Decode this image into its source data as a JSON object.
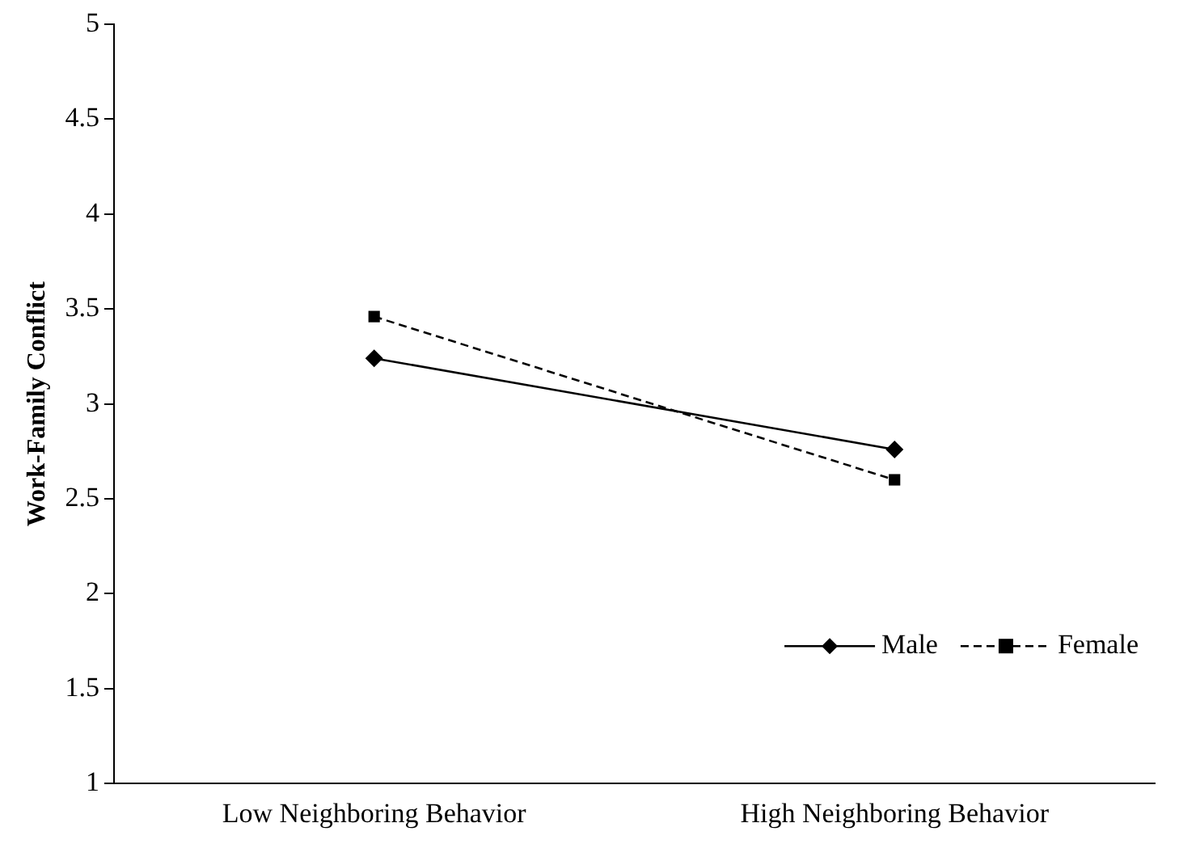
{
  "chart_data": {
    "type": "line",
    "ylabel": "Work-Family Conflict",
    "categories": [
      "Low Neighboring Behavior",
      "High Neighboring Behavior"
    ],
    "series": [
      {
        "name": "Male",
        "color": "#000000",
        "values": [
          3.24,
          2.76
        ],
        "marker": "diamond",
        "line_style": "solid"
      },
      {
        "name": "Female",
        "color": "#000000",
        "values": [
          3.46,
          2.6
        ],
        "marker": "square",
        "line_style": "dashed"
      }
    ],
    "ylim": [
      1,
      5
    ],
    "yticks": [
      1,
      1.5,
      2,
      2.5,
      3,
      3.5,
      4,
      4.5,
      5
    ],
    "grid": false,
    "legend": "bottom right"
  }
}
